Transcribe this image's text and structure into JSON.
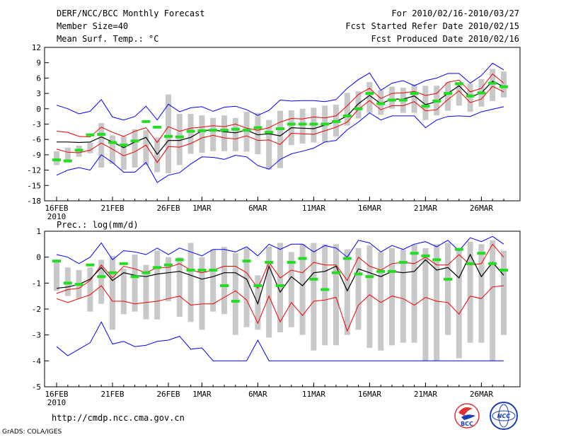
{
  "header": {
    "title": "DERF/NCC/BCC Monthly Forecast",
    "member_size": "Member Size=40",
    "variable": "Mean Surf. Temp.: °C",
    "period": "For 2010/02/16-2010/03/27",
    "started": "Fcst Started Refer Date 2010/02/15",
    "produced": "Fcst Produced Date 2010/02/16"
  },
  "footer": {
    "url": "http://cmdp.ncc.cma.gov.cn",
    "credit": "GrADS: COLA/IGES",
    "logo_bcc": "BCC",
    "logo_ncc": "NCC"
  },
  "colors": {
    "envelope": "#0000ff",
    "spread": "#ee0000",
    "mean": "#000000",
    "box": "#c8c8c8",
    "obs": "#22dd22"
  },
  "chart_data": [
    {
      "type": "line",
      "title": "Mean Surf. Temp.: °C",
      "xlabel": "",
      "ylabel": "",
      "days": 40,
      "xticks": [
        {
          "day": 0,
          "label": "16FEB"
        },
        {
          "day": 5,
          "label": "21FEB"
        },
        {
          "day": 10,
          "label": "26FEB"
        },
        {
          "day": 13,
          "label": "1MAR"
        },
        {
          "day": 18,
          "label": "6MAR"
        },
        {
          "day": 23,
          "label": "11MAR"
        },
        {
          "day": 28,
          "label": "16MAR"
        },
        {
          "day": 33,
          "label": "21MAR"
        },
        {
          "day": 38,
          "label": "26MAR"
        }
      ],
      "year_label": "2010",
      "ylim": [
        -18,
        12
      ],
      "yticks": [
        -18,
        -15,
        -12,
        -9,
        -6,
        -3,
        0,
        3,
        6,
        9,
        12
      ],
      "series": [
        {
          "name": "max",
          "values": [
            0.7,
            0,
            -1,
            -0.5,
            1.8,
            -1.6,
            -2.2,
            -1.5,
            0.5,
            -2.2,
            0.9,
            -0.6,
            0.2,
            0.4,
            -0.5,
            0.3,
            0.5,
            -0.2,
            -1.3,
            -0.3,
            1.7,
            1.5,
            1.6,
            1.6,
            1.4,
            1.8,
            4,
            5.7,
            7,
            3.6,
            5,
            5.5,
            4.5,
            5.5,
            6,
            6.9,
            6.9,
            5,
            6.5,
            8.9,
            7.6
          ]
        },
        {
          "name": "upper",
          "values": [
            -4.4,
            -4.6,
            -5.4,
            -5.5,
            -3.6,
            -4.6,
            -5.4,
            -4.4,
            -3.7,
            -6.6,
            -3.5,
            -4.4,
            -3.8,
            -3.6,
            -3.3,
            -3.5,
            -3,
            -3.8,
            -4.2,
            -3.7,
            -2.6,
            -1.9,
            -2,
            -1.6,
            -1.8,
            -1.4,
            0.6,
            2.8,
            4,
            2,
            3,
            3.1,
            3.4,
            2.6,
            3,
            5.2,
            5.6,
            3.3,
            4,
            6.8,
            5
          ]
        },
        {
          "name": "mean",
          "values": [
            -6.5,
            -6.5,
            -6.6,
            -6.5,
            -5.5,
            -6.5,
            -7.6,
            -6.5,
            -5.6,
            -8.9,
            -6.2,
            -6.2,
            -5.6,
            -4.3,
            -4.1,
            -4.5,
            -4.7,
            -4.2,
            -5.1,
            -4.9,
            -5.3,
            -3.7,
            -3.8,
            -3.9,
            -3.2,
            -2.5,
            -1.4,
            1,
            2.6,
            1,
            1.9,
            1.9,
            2.5,
            0.8,
            1.4,
            3,
            4.5,
            2.3,
            3.1,
            5.4,
            4.3
          ]
        },
        {
          "name": "lower",
          "values": [
            -7.9,
            -8.5,
            -8.6,
            -8.1,
            -6.7,
            -7.9,
            -9.2,
            -8.4,
            -7.1,
            -10.5,
            -7.4,
            -7.5,
            -6.8,
            -5.7,
            -5.2,
            -5.7,
            -5.9,
            -5.3,
            -6.2,
            -6.1,
            -7,
            -4.8,
            -4.9,
            -5,
            -4.3,
            -3.6,
            -2.6,
            -0.1,
            1.6,
            -0.2,
            0.6,
            0.6,
            1.4,
            -0.4,
            -0.2,
            1.8,
            3.5,
            1.2,
            1.9,
            4.4,
            3.3
          ]
        },
        {
          "name": "min",
          "values": [
            -13,
            -12,
            -11.5,
            -12,
            -9,
            -10.5,
            -12.4,
            -12.4,
            -10.5,
            -14.4,
            -13,
            -12.5,
            -10.8,
            -9.4,
            -9.5,
            -9.9,
            -9.1,
            -9.4,
            -11.1,
            -11.8,
            -9.9,
            -8.8,
            -8.3,
            -7.7,
            -6.5,
            -6.2,
            -4.1,
            -2.6,
            -0.8,
            -2.2,
            -1.4,
            -1.4,
            -1.4,
            -3.7,
            -2.2,
            -1.5,
            -1.4,
            -1.5,
            -0.6,
            -0.1,
            0.4
          ]
        },
        {
          "name": "box_top",
          "values": [
            -8.3,
            -7.6,
            -7.2,
            -6.6,
            -2.8,
            -5.2,
            -5.4,
            -4,
            -4.2,
            -5.6,
            2.8,
            -1,
            -1,
            -1.3,
            -1.8,
            -1.3,
            -1.8,
            -0.6,
            -0.8,
            -2.2,
            -0.4,
            -0.3,
            0,
            0.2,
            0.6,
            0.8,
            3.1,
            3.4,
            5.2,
            3.6,
            4.3,
            4.1,
            4.8,
            4.5,
            4.5,
            5.2,
            5.2,
            4.9,
            5.8,
            7.8,
            7.3
          ]
        },
        {
          "name": "box_bottom",
          "values": [
            -11,
            -10.5,
            -9.4,
            -8.7,
            -11.5,
            -10.8,
            -11.9,
            -11.5,
            -11,
            -12.4,
            -12.6,
            -11,
            -8.8,
            -8.6,
            -8.3,
            -8.3,
            -8.3,
            -8.4,
            -8.9,
            -11.9,
            -11.6,
            -7.1,
            -6.8,
            -6.6,
            -6.6,
            -5.4,
            -3.3,
            -1.9,
            -0.8,
            -1.2,
            0,
            -0.8,
            -0.8,
            -2.2,
            -1.3,
            -0.4,
            0.6,
            -0.6,
            0.4,
            1.5,
            2.2
          ]
        },
        {
          "name": "observed",
          "values": [
            -10,
            -10.2,
            -8.1,
            -5.1,
            -5,
            -6.6,
            -7.1,
            -6.3,
            -2.5,
            -3.6,
            -5.4,
            -5.5,
            -4.4,
            -4.3,
            -4.2,
            -4.2,
            -4,
            -4.2,
            -3.7,
            -4.6,
            -3.9,
            -3,
            -3,
            -3,
            -3,
            -2.5,
            -1.4,
            0,
            3,
            1,
            1.7,
            1.7,
            3,
            0.5,
            1.5,
            3,
            4.9,
            2.5,
            3.1,
            5,
            4.3
          ]
        }
      ]
    },
    {
      "type": "line",
      "title": "Prec.: log(mm/d)",
      "xlabel": "",
      "ylabel": "",
      "days": 40,
      "xticks": [
        {
          "day": 0,
          "label": "16FEB"
        },
        {
          "day": 5,
          "label": "21FEB"
        },
        {
          "day": 10,
          "label": "26FEB"
        },
        {
          "day": 13,
          "label": "1MAR"
        },
        {
          "day": 18,
          "label": "6MAR"
        },
        {
          "day": 23,
          "label": "11MAR"
        },
        {
          "day": 28,
          "label": "16MAR"
        },
        {
          "day": 33,
          "label": "21MAR"
        },
        {
          "day": 38,
          "label": "26MAR"
        }
      ],
      "year_label": "2010",
      "ylim": [
        -5,
        1
      ],
      "yticks": [
        -5,
        -4,
        -3,
        -2,
        -1,
        0,
        1
      ],
      "series": [
        {
          "name": "max",
          "values": [
            0.1,
            0,
            -0.25,
            0,
            0.55,
            -0.1,
            0.25,
            0.2,
            0.1,
            0.35,
            0.1,
            0.35,
            0.2,
            0.05,
            0.3,
            0.3,
            0.2,
            0.4,
            0.05,
            0.5,
            0.3,
            0.5,
            0.5,
            0.2,
            0.45,
            0.35,
            0,
            0.65,
            0.55,
            0.2,
            0.45,
            0.3,
            0.5,
            0.6,
            0.4,
            0.65,
            0.25,
            0.75,
            0.6,
            0.8,
            0.5
          ]
        },
        {
          "name": "upper",
          "values": [
            -1.4,
            -1.25,
            -1.2,
            -0.9,
            -0.3,
            -0.8,
            -0.35,
            -0.45,
            -0.6,
            -0.4,
            -0.4,
            -0.25,
            -0.5,
            -0.6,
            -0.5,
            -0.35,
            -0.35,
            -0.6,
            -1.2,
            -0.2,
            -0.8,
            -0.5,
            -0.6,
            -0.2,
            -0.3,
            -0.3,
            -0.9,
            0,
            -0.35,
            -0.5,
            -0.25,
            -0.2,
            -0.25,
            0,
            -0.3,
            -0.3,
            0.1,
            -0.3,
            -0.25,
            0.5,
            0
          ]
        },
        {
          "name": "mean",
          "values": [
            -1.2,
            -1.15,
            -1.05,
            -0.85,
            -0.4,
            -0.9,
            -0.6,
            -0.7,
            -0.75,
            -0.65,
            -0.6,
            -0.55,
            -0.7,
            -0.85,
            -0.75,
            -0.6,
            -0.6,
            -0.85,
            -1.8,
            -0.35,
            -1.35,
            -0.75,
            -1.1,
            -0.6,
            -0.55,
            -0.35,
            -1.3,
            -0.45,
            -0.6,
            -0.75,
            -0.55,
            -0.6,
            -0.55,
            -0.1,
            -0.5,
            -0.4,
            -0.8,
            0.1,
            -0.75,
            -0.2,
            -0.7
          ]
        },
        {
          "name": "lower",
          "values": [
            -1.6,
            -1.75,
            -1.6,
            -1.45,
            -1.1,
            -1.7,
            -1.7,
            -1.8,
            -1.75,
            -1.7,
            -1.6,
            -1.5,
            -1.85,
            -1.8,
            -1.8,
            -1.55,
            -1.3,
            -1.65,
            -2.55,
            -1.5,
            -2.5,
            -1.75,
            -2.25,
            -1.7,
            -1.65,
            -1.55,
            -2.85,
            -1.85,
            -1.45,
            -1.75,
            -1.5,
            -1.6,
            -1.85,
            -1.55,
            -1.7,
            -1.75,
            -2.2,
            -1.5,
            -1.6,
            -1.15,
            -1.1
          ]
        },
        {
          "name": "min",
          "values": [
            -3.45,
            -3.8,
            -3.55,
            -3.3,
            -2.5,
            -3.35,
            -3.25,
            -3.45,
            -3.4,
            -3.25,
            -3.2,
            -3.05,
            -3.55,
            -3.5,
            -4,
            -4,
            -4,
            -4,
            -3.2,
            -4,
            -4,
            -4,
            -4,
            -4,
            -4,
            -4,
            -4,
            -4,
            -4,
            -4,
            -4,
            -4,
            -4,
            -4,
            -4,
            -4,
            -4,
            -4,
            -4,
            -4,
            -4
          ]
        },
        {
          "name": "box_top",
          "values": [
            -0.2,
            -0.4,
            -0.5,
            -0.4,
            -0.1,
            0.05,
            -0.45,
            0.1,
            -0.3,
            0.25,
            0,
            0,
            0.55,
            0,
            0.3,
            0.4,
            0.15,
            0.35,
            -0.7,
            0.4,
            0.55,
            0.2,
            0.5,
            0.55,
            0.5,
            0.5,
            0.3,
            0.35,
            0.45,
            0.2,
            0.35,
            0.3,
            0.5,
            0.35,
            0.5,
            0.55,
            0.35,
            0.6,
            0.5,
            0.65,
            0.25
          ]
        },
        {
          "name": "box_bottom",
          "values": [
            -1.3,
            -1.5,
            -1.6,
            -2.1,
            -1.8,
            -2.8,
            -2.2,
            -2.1,
            -2.4,
            -2.4,
            -1.7,
            -2.3,
            -2.5,
            -2.8,
            -2.1,
            -2.2,
            -3,
            -2.7,
            -2.8,
            -3.1,
            -2.9,
            -2.7,
            -3,
            -3.6,
            -3.4,
            -3.4,
            -3,
            -2.8,
            -3.5,
            -3.6,
            -3.4,
            -3.3,
            -3.3,
            -4,
            -4,
            -3,
            -3.9,
            -3.3,
            -3.3,
            -4,
            -3
          ]
        },
        {
          "name": "observed",
          "values": [
            -0.15,
            -1,
            -1.05,
            -0.3,
            -0.75,
            -0.6,
            -0.25,
            -0.75,
            -0.6,
            -0.4,
            -0.3,
            -0.1,
            -0.5,
            -0.5,
            -0.5,
            -1.1,
            -1.7,
            -0.15,
            -1.1,
            -0.2,
            -1.1,
            -0.2,
            -0.05,
            -0.85,
            -1.25,
            -0.6,
            -0.05,
            -0.65,
            -0.75,
            -0.55,
            -0.55,
            -0.2,
            0.15,
            0.05,
            -0.1,
            -0.85,
            0.3,
            -0.25,
            0.15,
            -0.25,
            -0.5
          ]
        }
      ]
    }
  ]
}
